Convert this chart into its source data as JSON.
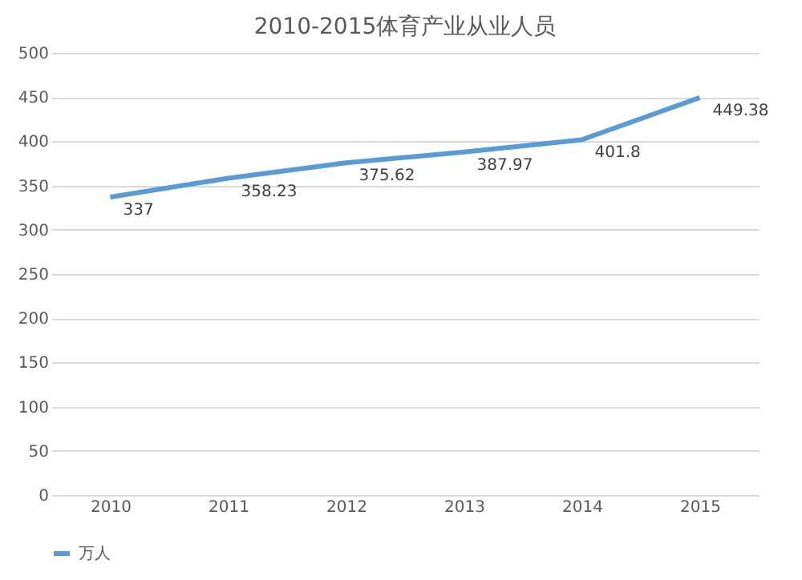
{
  "chart_data": {
    "type": "line",
    "title": "2010-2015体育产业从业人员",
    "categories": [
      "2010",
      "2011",
      "2012",
      "2013",
      "2014",
      "2015"
    ],
    "series": [
      {
        "name": "万人",
        "color": "#5b9bd5",
        "values": [
          337,
          358.23,
          375.62,
          387.97,
          401.8,
          449.38
        ]
      }
    ],
    "ylim": [
      0,
      500
    ],
    "yticks": [
      0,
      50,
      100,
      150,
      200,
      250,
      300,
      350,
      400,
      450,
      500
    ],
    "grid": "y",
    "legend": "bottom",
    "data_labels": true,
    "marker": "none"
  }
}
